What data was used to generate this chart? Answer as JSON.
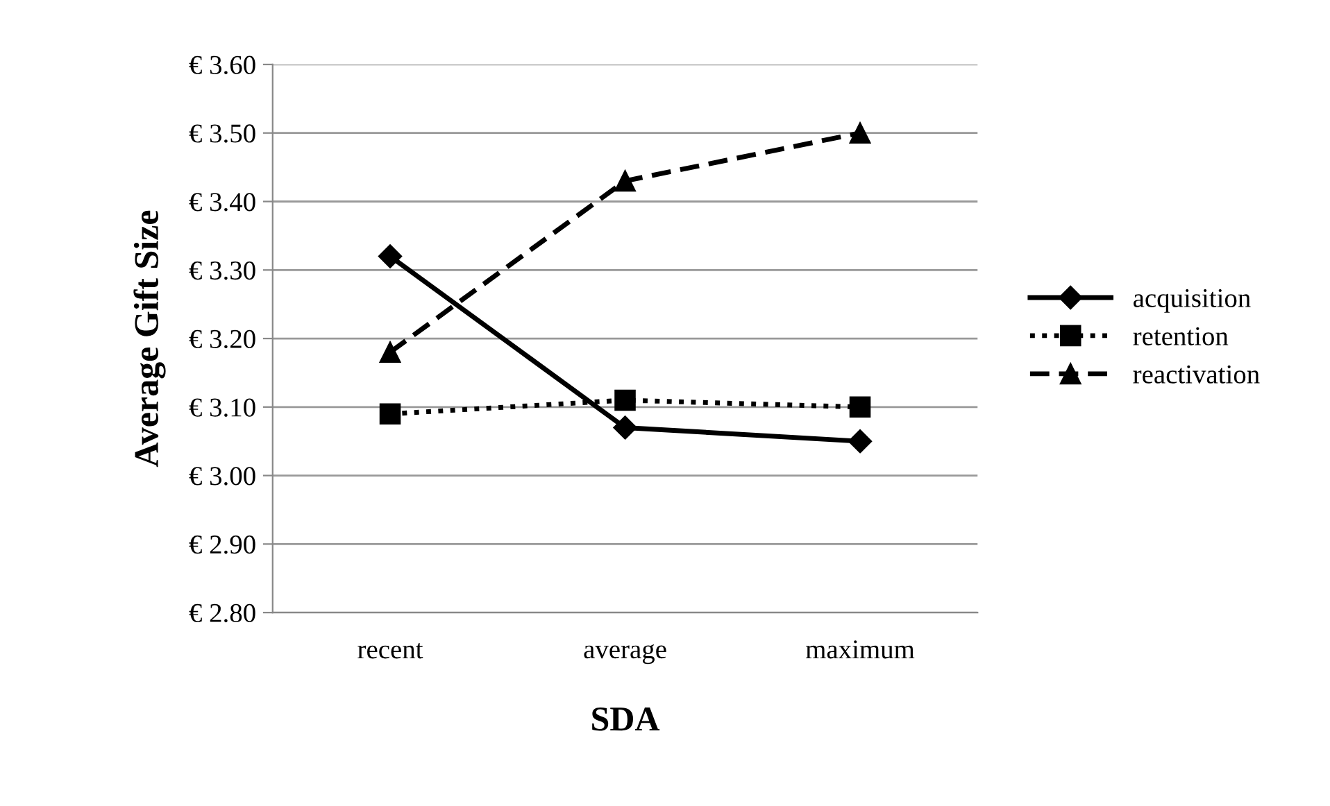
{
  "chart_data": {
    "type": "line",
    "xlabel": "SDA",
    "ylabel": "Average Gift Size",
    "categories": [
      "recent",
      "average",
      "maximum"
    ],
    "series": [
      {
        "name": "acquisition",
        "color": "#000000",
        "values": [
          3.32,
          3.07,
          3.05
        ],
        "marker": "diamond",
        "line_style": "solid"
      },
      {
        "name": "retention",
        "color": "#000000",
        "values": [
          3.09,
          3.11,
          3.1
        ],
        "marker": "square",
        "line_style": "dotted"
      },
      {
        "name": "reactivation",
        "color": "#000000",
        "values": [
          3.18,
          3.43,
          3.5
        ],
        "marker": "triangle",
        "line_style": "dashed"
      }
    ],
    "ylim": [
      2.8,
      3.6
    ],
    "yticks": [
      {
        "value": 2.8,
        "label": "€ 2.80"
      },
      {
        "value": 2.9,
        "label": "€ 2.90"
      },
      {
        "value": 3.0,
        "label": "€ 3.00"
      },
      {
        "value": 3.1,
        "label": "€ 3.10"
      },
      {
        "value": 3.2,
        "label": "€ 3.20"
      },
      {
        "value": 3.3,
        "label": "€ 3.30"
      },
      {
        "value": 3.4,
        "label": "€ 3.40"
      },
      {
        "value": 3.5,
        "label": "€ 3.50"
      },
      {
        "value": 3.6,
        "label": "€ 3.60"
      }
    ],
    "grid": "y",
    "legend": "right"
  }
}
